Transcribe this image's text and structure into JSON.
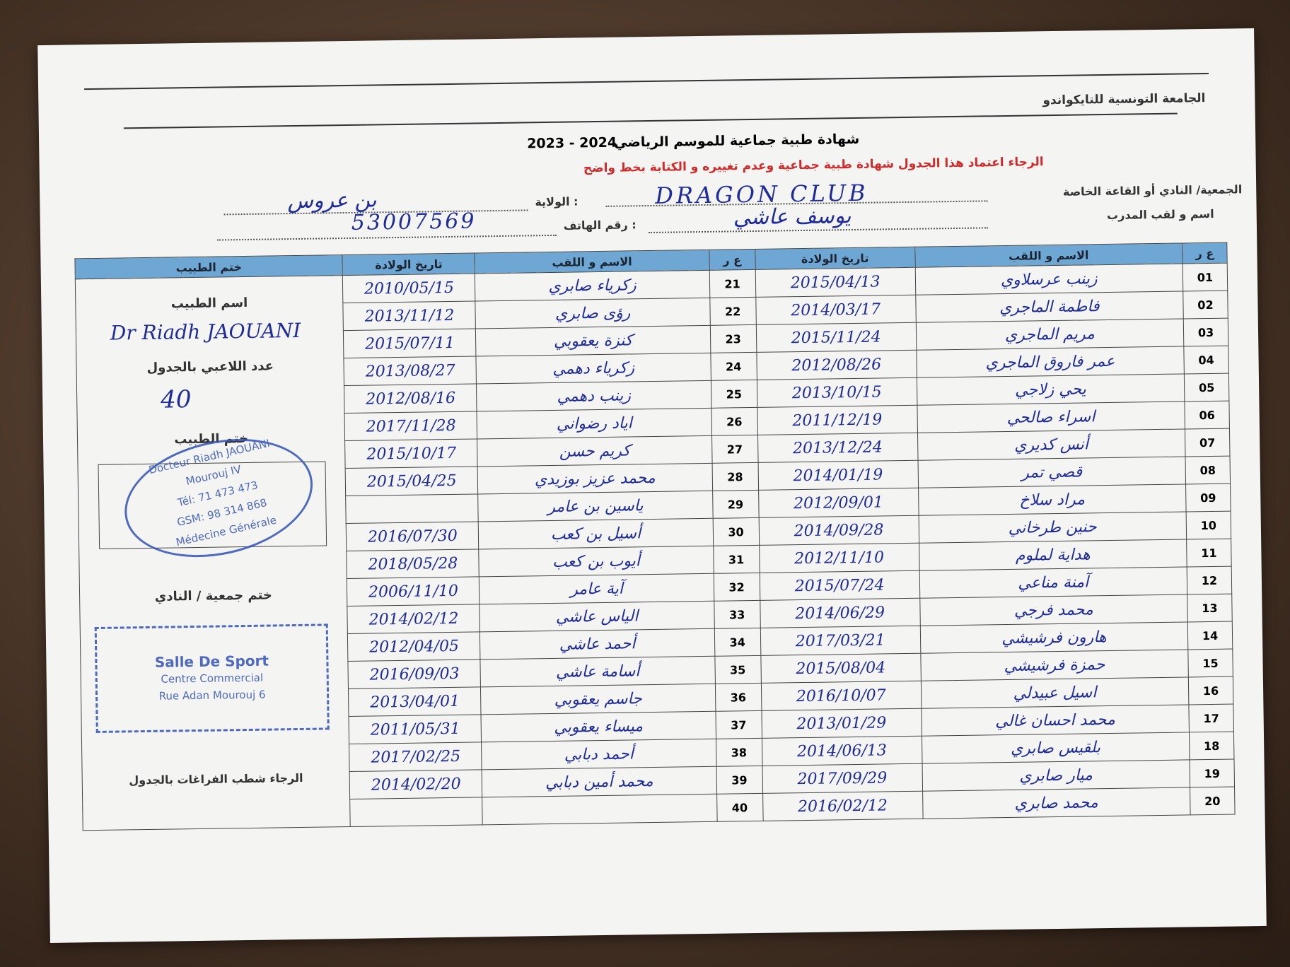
{
  "header": {
    "federation": "الجامعة التونسية للتايكواندو",
    "title": "شهادة طبية جماعية للموسم الرياضي",
    "season": "2023 - 2024",
    "notice": "الرجاء اعتماد هذا الجدول شهادة طبية جماعية وعدم تغييره و الكتابة بخط واضح"
  },
  "form": {
    "club_label": "الجمعية/ النادي أو القاعة الخاصة",
    "club": "DRAGON CLUB",
    "state_label": "الولاية :",
    "state": "بن عروس",
    "coach_label": "اسم و لقب المدرب",
    "coach": "يوسف عاشي",
    "phone_label": "رقم الهاتف :",
    "phone": "53007569"
  },
  "table": {
    "columns": [
      "ع ر",
      "الاسم و اللقب",
      "تاريخ الولادة",
      "ع ر",
      "الاسم و اللقب",
      "تاريخ الولادة",
      "ختم الطبيب"
    ],
    "rows": [
      [
        "01",
        "زينب عرسلاوي",
        "2015/04/13"
      ],
      [
        "02",
        "فاطمة الماجري",
        "2014/03/17"
      ],
      [
        "03",
        "مريم الماجري",
        "2015/11/24"
      ],
      [
        "04",
        "عمر فاروق الماجري",
        "2012/08/26"
      ],
      [
        "05",
        "يحي زلاجي",
        "2013/10/15"
      ],
      [
        "06",
        "اسراء صالحي",
        "2011/12/19"
      ],
      [
        "07",
        "أنس كديري",
        "2013/12/24"
      ],
      [
        "08",
        "قصي تمر",
        "2014/01/19"
      ],
      [
        "09",
        "مراد سلاخ",
        "2012/09/01"
      ],
      [
        "10",
        "حنين طرخاني",
        "2014/09/28"
      ],
      [
        "11",
        "هداية لملوم",
        "2012/11/10"
      ],
      [
        "12",
        "آمنة مناعي",
        "2015/07/24"
      ],
      [
        "13",
        "محمد فرجي",
        "2014/06/29"
      ],
      [
        "14",
        "هارون فرشيشي",
        "2017/03/21"
      ],
      [
        "15",
        "حمزة فرشيشي",
        "2015/08/04"
      ],
      [
        "16",
        "اسيل عبيدلي",
        "2016/10/07"
      ],
      [
        "17",
        "محمد احسان غالي",
        "2013/01/29"
      ],
      [
        "18",
        "بلقيس صابري",
        "2014/06/13"
      ],
      [
        "19",
        "ميار صابري",
        "2017/09/29"
      ],
      [
        "20",
        "محمد صابري",
        "2016/02/12"
      ],
      [
        "21",
        "زكرياء صابري",
        "2010/05/15"
      ],
      [
        "22",
        "رؤى صابري",
        "2013/11/12"
      ],
      [
        "23",
        "كنزة يعقوبي",
        "2015/07/11"
      ],
      [
        "24",
        "زكرياء دهمي",
        "2013/08/27"
      ],
      [
        "25",
        "زينب دهمي",
        "2012/08/16"
      ],
      [
        "26",
        "اياد رضواني",
        "2017/11/28"
      ],
      [
        "27",
        "كريم حسن",
        "2015/10/17"
      ],
      [
        "28",
        "محمد عزيز بوزيدي",
        "2015/04/25"
      ],
      [
        "29",
        "ياسين بن عامر",
        null
      ],
      [
        "30",
        "أسيل بن كعب",
        "2016/07/30"
      ],
      [
        "31",
        "أيوب بن كعب",
        "2018/05/28"
      ],
      [
        "32",
        "آية عامر",
        "2006/11/10"
      ],
      [
        "33",
        "الياس عاشي",
        "2014/02/12"
      ],
      [
        "34",
        "أحمد عاشي",
        "2012/04/05"
      ],
      [
        "35",
        "أسامة عاشي",
        "2016/09/03"
      ],
      [
        "36",
        "جاسم يعقوبي",
        "2013/04/01"
      ],
      [
        "37",
        "ميساء يعقوبي",
        "2011/05/31"
      ],
      [
        "38",
        "أحمد دبابي",
        "2017/02/25"
      ],
      [
        "39",
        "محمد أمين دبابي",
        "2014/02/20"
      ],
      [
        "40",
        null,
        null
      ]
    ]
  },
  "doctor": {
    "name_label": "اسم الطبيب",
    "name": "Dr Riadh JAOUANI",
    "count_label": "عدد اللاعبي بالجدول",
    "count": 40,
    "stamp_label": "ختم الطبيب",
    "stamp_lines": [
      "Docteur Riadh JAOUANI",
      "Mourouj IV",
      "Tél: 71 473 473",
      "GSM: 98 314 868",
      "Médecine Générale"
    ],
    "club_stamp_label": "ختم جمعية / النادي",
    "club_stamp_lines": [
      "Salle De Sport",
      "Centre Commercial",
      "Rue Adan Mourouj 6"
    ],
    "footer_note": "الرجاء شطب الفراغات بالجدول"
  }
}
